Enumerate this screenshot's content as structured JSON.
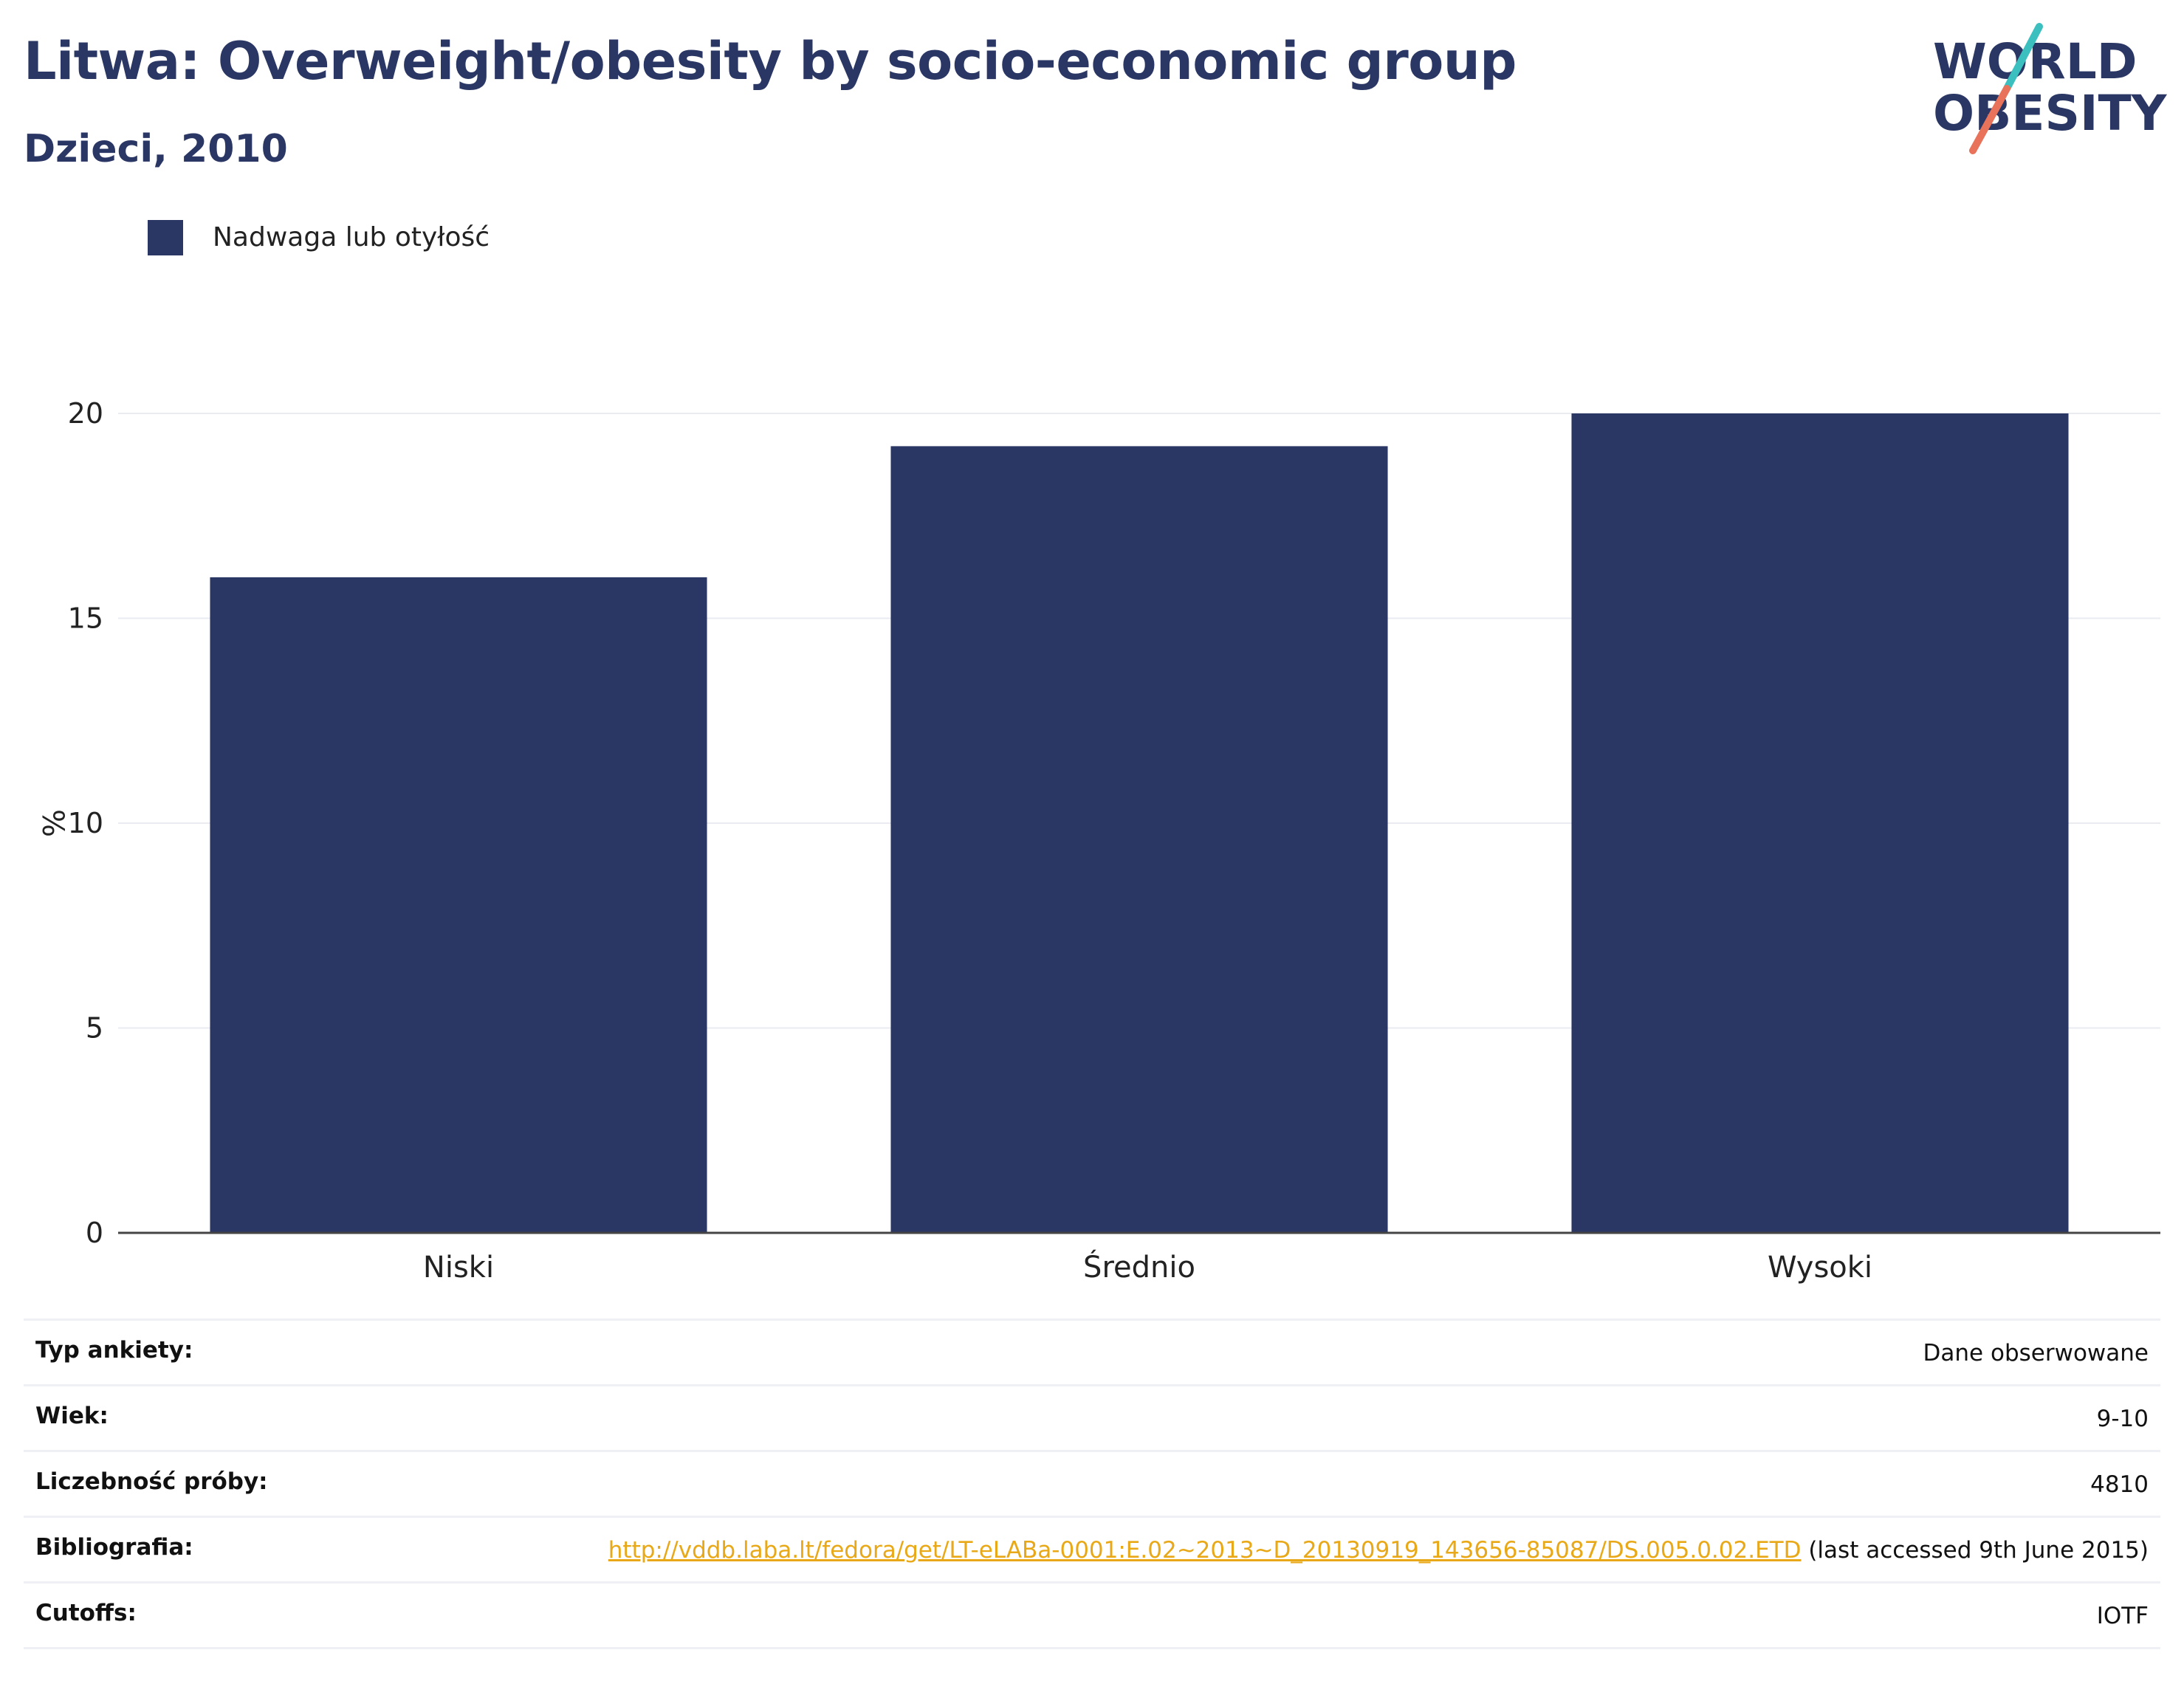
{
  "header": {
    "title": "Litwa: Overweight/obesity by socio-economic group",
    "subtitle": "Dzieci, 2010"
  },
  "logo": {
    "line1": "WORLD",
    "line2": "OBESITY",
    "colors": {
      "text": "#2a3663",
      "teal": "#3cbfbf",
      "coral": "#e8735a"
    }
  },
  "chart_data": {
    "type": "bar",
    "categories": [
      "Niski",
      "Średnio",
      "Wysoki"
    ],
    "series": [
      {
        "name": "Nadwaga lub otyłość",
        "values": [
          16.0,
          19.2,
          20.0
        ],
        "color": "#2a3663"
      }
    ],
    "title": "",
    "xlabel": "",
    "ylabel": "%",
    "ylim": [
      0,
      20
    ],
    "yticks": [
      0,
      5,
      10,
      15,
      20
    ],
    "grid": true,
    "legend": "top-left"
  },
  "meta": {
    "survey_type": {
      "label": "Typ ankiety:",
      "value": "Dane obserwowane"
    },
    "age": {
      "label": "Wiek:",
      "value": "9-10"
    },
    "sample_size": {
      "label": "Liczebność próby:",
      "value": "4810"
    },
    "bibliography": {
      "label": "Bibliografia:",
      "link": "http://vddb.laba.lt/fedora/get/LT-eLABa-0001:E.02~2013~D_20130919_143656-85087/DS.005.0.02.ETD",
      "note": " (last accessed 9th June 2015)"
    },
    "cutoffs": {
      "label": "Cutoffs:",
      "value": "IOTF"
    }
  }
}
